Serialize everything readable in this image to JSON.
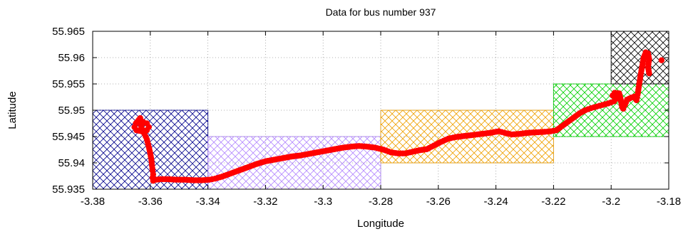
{
  "chart_data": {
    "type": "scatter",
    "title": "Data for bus number 937",
    "xlabel": "Longitude",
    "ylabel": "Latitude",
    "xlim": [
      -3.38,
      -3.18
    ],
    "ylim": [
      55.935,
      55.965
    ],
    "xticks": [
      -3.38,
      -3.36,
      -3.34,
      -3.32,
      -3.3,
      -3.28,
      -3.26,
      -3.24,
      -3.22,
      -3.2,
      -3.18
    ],
    "yticks": [
      55.935,
      55.94,
      55.945,
      55.95,
      55.955,
      55.96,
      55.965
    ],
    "xtick_labels": [
      "-3.38",
      "-3.36",
      "-3.34",
      "-3.32",
      "-3.3",
      "-3.28",
      "-3.26",
      "-3.24",
      "-3.22",
      "-3.2",
      "-3.18"
    ],
    "ytick_labels": [
      "55.935",
      "55.94",
      "55.945",
      "55.95",
      "55.955",
      "55.96",
      "55.965"
    ],
    "grid": true,
    "regions": [
      {
        "color": "#00008b",
        "x": [
          -3.38,
          -3.34
        ],
        "y": [
          55.935,
          55.95
        ]
      },
      {
        "color": "#b388ff",
        "x": [
          -3.34,
          -3.28
        ],
        "y": [
          55.935,
          55.945
        ]
      },
      {
        "color": "#f0a000",
        "x": [
          -3.28,
          -3.22
        ],
        "y": [
          55.94,
          55.95
        ]
      },
      {
        "color": "#00d000",
        "x": [
          -3.22,
          -3.18
        ],
        "y": [
          55.945,
          55.955
        ]
      },
      {
        "color": "#000000",
        "x": [
          -3.2,
          -3.18
        ],
        "y": [
          55.955,
          55.965
        ]
      }
    ],
    "series": [
      {
        "color": "#ff0000",
        "points": [
          [
            -3.3635,
            55.9485
          ],
          [
            -3.365,
            55.9475
          ],
          [
            -3.3655,
            55.9468
          ],
          [
            -3.3648,
            55.9462
          ],
          [
            -3.363,
            55.946
          ],
          [
            -3.3612,
            55.9462
          ],
          [
            -3.3605,
            55.9468
          ],
          [
            -3.3612,
            55.9475
          ],
          [
            -3.3625,
            55.9478
          ],
          [
            -3.3632,
            55.947
          ],
          [
            -3.3628,
            55.9462
          ],
          [
            -3.362,
            55.9455
          ],
          [
            -3.3612,
            55.9445
          ],
          [
            -3.3605,
            55.943
          ],
          [
            -3.36,
            55.9418
          ],
          [
            -3.3596,
            55.9405
          ],
          [
            -3.3594,
            55.9395
          ],
          [
            -3.3592,
            55.9385
          ],
          [
            -3.359,
            55.9378
          ],
          [
            -3.3592,
            55.9372
          ],
          [
            -3.359,
            55.9366
          ],
          [
            -3.358,
            55.9368
          ],
          [
            -3.3565,
            55.9369
          ],
          [
            -3.354,
            55.9369
          ],
          [
            -3.351,
            55.9368
          ],
          [
            -3.348,
            55.9368
          ],
          [
            -3.345,
            55.9367
          ],
          [
            -3.342,
            55.9367
          ],
          [
            -3.3395,
            55.9368
          ],
          [
            -3.3375,
            55.937
          ],
          [
            -3.335,
            55.9374
          ],
          [
            -3.332,
            55.938
          ],
          [
            -3.329,
            55.9386
          ],
          [
            -3.326,
            55.9392
          ],
          [
            -3.323,
            55.9398
          ],
          [
            -3.32,
            55.9403
          ],
          [
            -3.317,
            55.9406
          ],
          [
            -3.314,
            55.9409
          ],
          [
            -3.311,
            55.9412
          ],
          [
            -3.308,
            55.9414
          ],
          [
            -3.305,
            55.9417
          ],
          [
            -3.302,
            55.942
          ],
          [
            -3.299,
            55.9423
          ],
          [
            -3.296,
            55.9426
          ],
          [
            -3.293,
            55.9429
          ],
          [
            -3.29,
            55.9431
          ],
          [
            -3.2875,
            55.9432
          ],
          [
            -3.285,
            55.9431
          ],
          [
            -3.282,
            55.9429
          ],
          [
            -3.279,
            55.9425
          ],
          [
            -3.2765,
            55.942
          ],
          [
            -3.274,
            55.9418
          ],
          [
            -3.2715,
            55.9418
          ],
          [
            -3.269,
            55.9421
          ],
          [
            -3.2665,
            55.9424
          ],
          [
            -3.264,
            55.9426
          ],
          [
            -3.2615,
            55.9433
          ],
          [
            -3.259,
            55.944
          ],
          [
            -3.2565,
            55.9446
          ],
          [
            -3.254,
            55.9449
          ],
          [
            -3.251,
            55.9451
          ],
          [
            -3.248,
            55.9453
          ],
          [
            -3.245,
            55.9455
          ],
          [
            -3.242,
            55.9457
          ],
          [
            -3.239,
            55.946
          ],
          [
            -3.237,
            55.9457
          ],
          [
            -3.2345,
            55.9454
          ],
          [
            -3.232,
            55.9455
          ],
          [
            -3.229,
            55.9457
          ],
          [
            -3.226,
            55.9458
          ],
          [
            -3.223,
            55.9459
          ],
          [
            -3.221,
            55.946
          ],
          [
            -3.219,
            55.9462
          ],
          [
            -3.217,
            55.947
          ],
          [
            -3.215,
            55.9478
          ],
          [
            -3.213,
            55.9486
          ],
          [
            -3.211,
            55.9494
          ],
          [
            -3.209,
            55.95
          ],
          [
            -3.207,
            55.9504
          ],
          [
            -3.205,
            55.9507
          ],
          [
            -3.203,
            55.951
          ],
          [
            -3.201,
            55.9513
          ],
          [
            -3.199,
            55.9517
          ],
          [
            -3.198,
            55.9522
          ],
          [
            -3.1995,
            55.9528
          ],
          [
            -3.1988,
            55.9533
          ],
          [
            -3.1972,
            55.9532
          ],
          [
            -3.1968,
            55.9524
          ],
          [
            -3.1965,
            55.9515
          ],
          [
            -3.1962,
            55.9506
          ],
          [
            -3.1958,
            55.9503
          ],
          [
            -3.1952,
            55.951
          ],
          [
            -3.1945,
            55.952
          ],
          [
            -3.193,
            55.9524
          ],
          [
            -3.192,
            55.9526
          ],
          [
            -3.1912,
            55.9519
          ],
          [
            -3.1908,
            55.953
          ],
          [
            -3.1903,
            55.9548
          ],
          [
            -3.1898,
            55.9566
          ],
          [
            -3.1892,
            55.9584
          ],
          [
            -3.1887,
            55.96
          ],
          [
            -3.188,
            55.961
          ],
          [
            -3.1872,
            55.9608
          ],
          [
            -3.1868,
            55.9597
          ],
          [
            -3.1872,
            55.9582
          ],
          [
            -3.1868,
            55.957
          ],
          [
            -3.1825,
            55.9595
          ]
        ]
      }
    ]
  }
}
